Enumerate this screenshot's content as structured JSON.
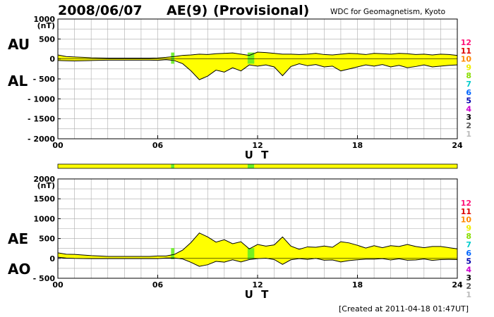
{
  "header": {
    "date": "2008/06/07",
    "index_name": "AE(9)",
    "status": "(Provisional)",
    "source": "WDC for Geomagnetism, Kyoto"
  },
  "footer": {
    "created": "[Created at 2011-04-18 01:47UT]"
  },
  "colors": {
    "envelope_fill": "#ffff00",
    "green_segment": "#66ee22",
    "grid": "#aaaaaa"
  },
  "count_scale": {
    "labels": [
      "12",
      "11",
      "10",
      "9",
      "8",
      "7",
      "6",
      "5",
      "4",
      "3",
      "2",
      "1"
    ],
    "colors": [
      "#ff1177",
      "#dd0000",
      "#ff8800",
      "#eeee00",
      "#88dd00",
      "#00cccc",
      "#0066ff",
      "#0000aa",
      "#cc00cc",
      "#000000",
      "#555555",
      "#bbbbbb"
    ]
  },
  "chart_data": [
    {
      "type": "area",
      "series": [
        {
          "name": "AU"
        },
        {
          "name": "AL"
        }
      ],
      "xlabel": "U T",
      "xticks": [
        "00",
        "06",
        "12",
        "18",
        "24"
      ],
      "xlim": [
        0,
        24
      ],
      "ylim": [
        -2000,
        1000
      ],
      "yticks": [
        "1000",
        "500",
        "0",
        "- 500",
        "- 1000",
        "- 1500",
        "- 2000"
      ],
      "yunit": "(nT)",
      "grid": true,
      "hours": [
        0,
        0.5,
        1,
        1.5,
        2,
        2.5,
        3,
        3.5,
        4,
        4.5,
        5,
        5.5,
        6,
        6.5,
        7,
        7.5,
        8,
        8.5,
        9,
        9.5,
        10,
        10.5,
        11,
        11.5,
        12,
        12.5,
        13,
        13.5,
        14,
        14.5,
        15,
        15.5,
        16,
        16.5,
        17,
        17.5,
        18,
        18.5,
        19,
        19.5,
        20,
        20.5,
        21,
        21.5,
        22,
        22.5,
        23,
        23.5,
        24
      ],
      "AU": [
        100,
        60,
        50,
        40,
        30,
        25,
        20,
        20,
        20,
        20,
        20,
        20,
        25,
        40,
        60,
        90,
        100,
        120,
        110,
        130,
        140,
        150,
        120,
        90,
        170,
        160,
        140,
        120,
        120,
        110,
        120,
        140,
        110,
        100,
        120,
        140,
        130,
        110,
        140,
        130,
        120,
        140,
        130,
        110,
        120,
        100,
        120,
        110,
        90
      ],
      "AL": [
        -40,
        -45,
        -50,
        -45,
        -40,
        -35,
        -30,
        -30,
        -30,
        -30,
        -30,
        -30,
        -35,
        -20,
        -40,
        -120,
        -300,
        -520,
        -430,
        -280,
        -330,
        -220,
        -300,
        -150,
        -180,
        -150,
        -200,
        -420,
        -190,
        -120,
        -170,
        -140,
        -200,
        -180,
        -300,
        -250,
        -200,
        -150,
        -180,
        -140,
        -200,
        -160,
        -220,
        -190,
        -150,
        -200,
        -180,
        -160,
        -150
      ]
    },
    {
      "type": "area",
      "series": [
        {
          "name": "AE"
        },
        {
          "name": "AO"
        }
      ],
      "xlabel": "U T",
      "xticks": [
        "00",
        "06",
        "12",
        "18",
        "24"
      ],
      "xlim": [
        0,
        24
      ],
      "ylim": [
        -500,
        2000
      ],
      "yticks": [
        "2000",
        "1500",
        "1000",
        "500",
        "0",
        "- 500"
      ],
      "yunit": "(nT)",
      "grid": true,
      "hours": [
        0,
        0.5,
        1,
        1.5,
        2,
        2.5,
        3,
        3.5,
        4,
        4.5,
        5,
        5.5,
        6,
        6.5,
        7,
        7.5,
        8,
        8.5,
        9,
        9.5,
        10,
        10.5,
        11,
        11.5,
        12,
        12.5,
        13,
        13.5,
        14,
        14.5,
        15,
        15.5,
        16,
        16.5,
        17,
        17.5,
        18,
        18.5,
        19,
        19.5,
        20,
        20.5,
        21,
        21.5,
        22,
        22.5,
        23,
        23.5,
        24
      ],
      "AE": [
        140,
        105,
        100,
        85,
        70,
        60,
        50,
        50,
        50,
        50,
        50,
        50,
        60,
        60,
        100,
        210,
        400,
        640,
        540,
        410,
        470,
        370,
        420,
        240,
        350,
        310,
        340,
        540,
        310,
        230,
        290,
        280,
        310,
        280,
        420,
        390,
        330,
        260,
        320,
        270,
        320,
        300,
        350,
        300,
        270,
        300,
        300,
        270,
        240
      ],
      "AO": [
        30,
        8,
        0,
        -3,
        -5,
        -5,
        -5,
        -5,
        -5,
        -5,
        -5,
        -5,
        -5,
        10,
        10,
        -15,
        -100,
        -200,
        -160,
        -75,
        -95,
        -35,
        -90,
        -30,
        -5,
        5,
        -30,
        -150,
        -35,
        -5,
        -25,
        0,
        -45,
        -40,
        -90,
        -55,
        -35,
        -20,
        -20,
        -5,
        -40,
        -10,
        -45,
        -40,
        -15,
        -50,
        -30,
        -25,
        -30
      ]
    }
  ],
  "status_bar": {
    "segments": [
      {
        "from": 0,
        "to": 6.8,
        "color": "#ffff00"
      },
      {
        "from": 6.8,
        "to": 7.0,
        "color": "#66ee22"
      },
      {
        "from": 7.0,
        "to": 11.4,
        "color": "#ffff00"
      },
      {
        "from": 11.4,
        "to": 11.8,
        "color": "#66ee22"
      },
      {
        "from": 11.8,
        "to": 24,
        "color": "#ffff00"
      }
    ]
  }
}
